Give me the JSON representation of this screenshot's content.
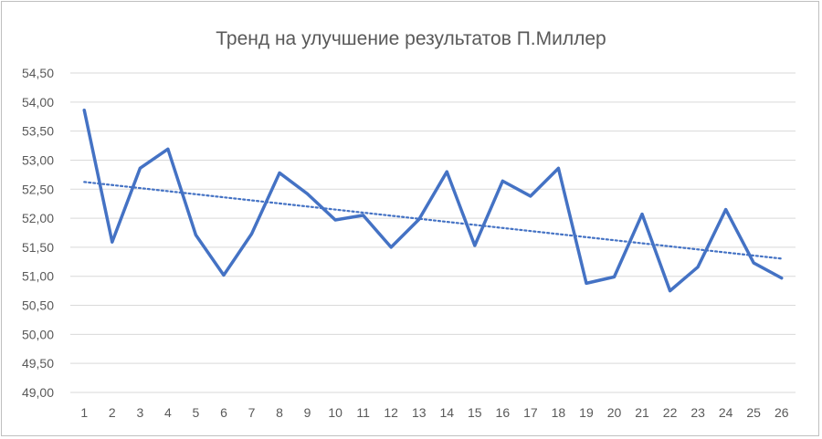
{
  "chart_data": {
    "type": "line",
    "title": "Тренд на улучшение результатов П.Миллер",
    "xlabel": "",
    "ylabel": "",
    "categories": [
      "1",
      "2",
      "3",
      "4",
      "5",
      "6",
      "7",
      "8",
      "9",
      "10",
      "11",
      "12",
      "13",
      "14",
      "15",
      "16",
      "17",
      "18",
      "19",
      "20",
      "21",
      "22",
      "23",
      "24",
      "25",
      "26"
    ],
    "series": [
      {
        "values": [
          53.86,
          51.59,
          52.86,
          53.19,
          51.71,
          51.02,
          51.73,
          52.78,
          52.42,
          51.97,
          52.05,
          51.5,
          51.98,
          52.8,
          51.53,
          52.64,
          52.38,
          52.86,
          50.88,
          50.99,
          52.07,
          50.75,
          51.16,
          52.15,
          51.23,
          50.97
        ],
        "color": "#4472c4"
      }
    ],
    "trendline": {
      "type": "linear",
      "style": "dotted",
      "color": "#4472c4"
    },
    "ylim": [
      49.0,
      54.5
    ],
    "yticks": [
      "49,00",
      "49,50",
      "50,00",
      "50,50",
      "51,00",
      "51,50",
      "52,00",
      "52,50",
      "53,00",
      "53,50",
      "54,00",
      "54,50"
    ],
    "grid": true,
    "legend": "none"
  }
}
